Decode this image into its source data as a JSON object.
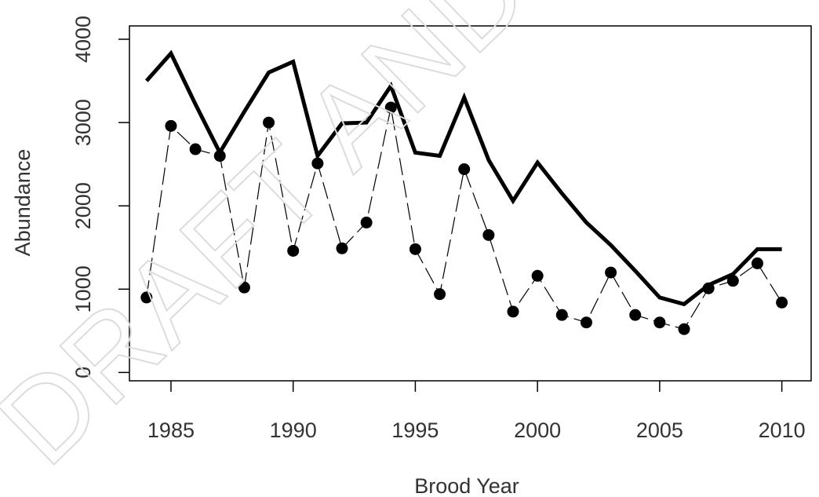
{
  "watermark": "DRAFT AND WITH",
  "chart_data": {
    "type": "line",
    "title": "",
    "xlabel": "Brood Year",
    "ylabel": "Abundance",
    "xlim": [
      1983.3,
      2011.2
    ],
    "ylim": [
      -100,
      4160
    ],
    "x_ticks": [
      1985,
      1990,
      1995,
      2000,
      2005,
      2010
    ],
    "y_ticks": [
      0,
      1000,
      2000,
      3000,
      4000
    ],
    "legend": "none",
    "grid": false,
    "x": [
      1984,
      1985,
      1986,
      1987,
      1988,
      1989,
      1990,
      1991,
      1992,
      1993,
      1994,
      1995,
      1996,
      1997,
      1998,
      1999,
      2000,
      2001,
      2002,
      2003,
      2004,
      2005,
      2006,
      2007,
      2008,
      2009,
      2010
    ],
    "series": [
      {
        "style": "thick-solid-line",
        "color": "#000000",
        "values": [
          3500,
          3830,
          3220,
          2640,
          3130,
          3600,
          3730,
          2600,
          2990,
          3000,
          3440,
          2640,
          2600,
          3300,
          2550,
          2060,
          2520,
          2150,
          1800,
          1530,
          1220,
          900,
          820,
          1050,
          1180,
          1480,
          1480
        ]
      },
      {
        "style": "thin-dashed-line-with-points",
        "color": "#000000",
        "values": [
          900,
          2960,
          2680,
          2600,
          1020,
          3000,
          1460,
          2510,
          1490,
          1800,
          3180,
          1480,
          940,
          2440,
          1650,
          730,
          1160,
          690,
          600,
          1200,
          690,
          600,
          520,
          1010,
          1100,
          1310,
          840
        ]
      }
    ]
  }
}
